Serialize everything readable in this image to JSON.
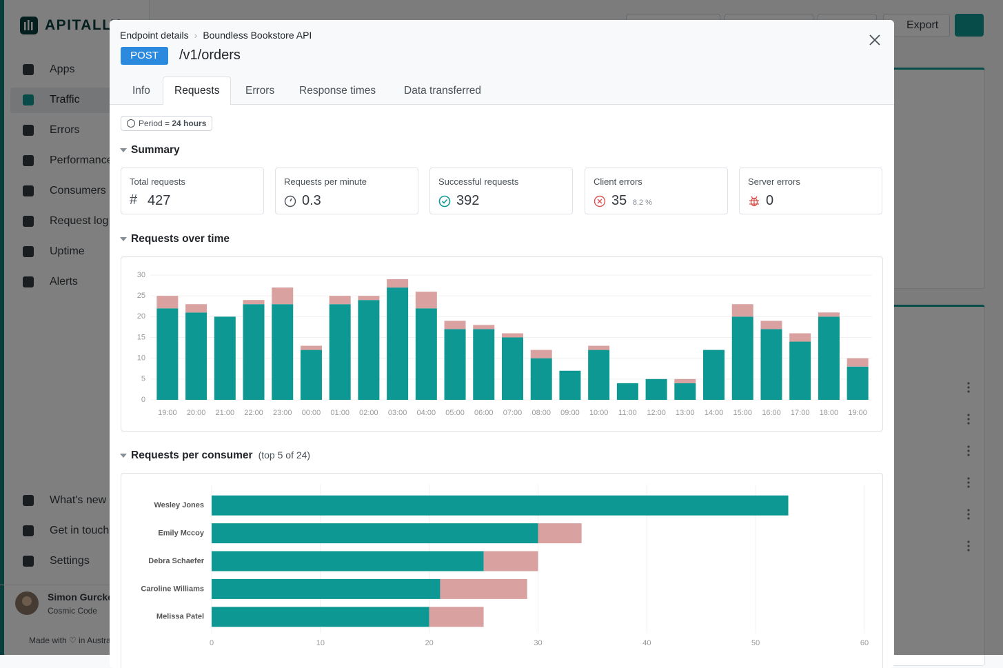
{
  "sidebar": {
    "logo": "APITALLY",
    "nav": [
      "Apps",
      "Traffic",
      "Errors",
      "Performance",
      "Consumers",
      "Request log",
      "Uptime",
      "Alerts"
    ],
    "active_nav": 1,
    "bottom_nav": [
      "What's new",
      "Get in touch",
      "Settings"
    ],
    "user": {
      "name": "Simon Gurcke",
      "team": "Cosmic Code"
    },
    "footer": [
      "Made with",
      "in Australia"
    ]
  },
  "toolbar": {
    "export": "Export"
  },
  "modal": {
    "breadcrumb": [
      "Endpoint details",
      "Boundless Bookstore API"
    ],
    "method": "POST",
    "path": "/v1/orders",
    "tabs": [
      "Info",
      "Requests",
      "Errors",
      "Response times",
      "Data transferred"
    ],
    "active_tab": 1,
    "period": {
      "label": "Period =",
      "value": "24 hours"
    },
    "summary_heading": "Summary",
    "cards": [
      {
        "label": "Total requests",
        "value": 427
      },
      {
        "label": "Requests per minute",
        "value": 0.3
      },
      {
        "label": "Successful requests",
        "value": 392
      },
      {
        "label": "Client errors",
        "value": 35,
        "percent_label": "8.2 %"
      },
      {
        "label": "Server errors",
        "value": 0
      }
    ]
  },
  "chart_data": [
    {
      "type": "bar",
      "orientation": "vertical",
      "stacked": true,
      "title": "Requests over time",
      "categories": [
        "19:00",
        "20:00",
        "21:00",
        "22:00",
        "23:00",
        "00:00",
        "01:00",
        "02:00",
        "03:00",
        "04:00",
        "05:00",
        "06:00",
        "07:00",
        "08:00",
        "09:00",
        "10:00",
        "11:00",
        "12:00",
        "13:00",
        "14:00",
        "15:00",
        "16:00",
        "17:00",
        "18:00",
        "19:00"
      ],
      "series": [
        {
          "color": "#0e9893",
          "values": [
            22,
            21,
            20,
            23,
            23,
            12,
            23,
            24,
            27,
            22,
            17,
            17,
            15,
            10,
            7,
            12,
            4,
            5,
            4,
            12,
            20,
            17,
            14,
            20,
            8
          ]
        },
        {
          "color": "#d9a1a0",
          "values": [
            3,
            2,
            0,
            1,
            4,
            1,
            2,
            1,
            2,
            4,
            2,
            1,
            1,
            2,
            0,
            1,
            0,
            0,
            1,
            0,
            3,
            2,
            2,
            1,
            2
          ]
        }
      ],
      "ylim": [
        0,
        30
      ],
      "yticks": [
        0,
        5,
        10,
        15,
        20,
        25,
        30
      ],
      "grid": true
    },
    {
      "type": "bar",
      "orientation": "horizontal",
      "stacked": true,
      "title": "Requests per consumer",
      "subtitle": "(top 5 of 24)",
      "categories": [
        "Wesley Jones",
        "Emily Mccoy",
        "Debra Schaefer",
        "Caroline Williams",
        "Melissa Patel"
      ],
      "series": [
        {
          "color": "#0e9893",
          "values": [
            53,
            30,
            25,
            21,
            20
          ]
        },
        {
          "color": "#d9a1a0",
          "values": [
            0,
            4,
            5,
            8,
            5
          ]
        }
      ],
      "xlim": [
        0,
        60
      ],
      "xticks": [
        0,
        10,
        20,
        30,
        40,
        50,
        60
      ],
      "grid": true
    }
  ]
}
